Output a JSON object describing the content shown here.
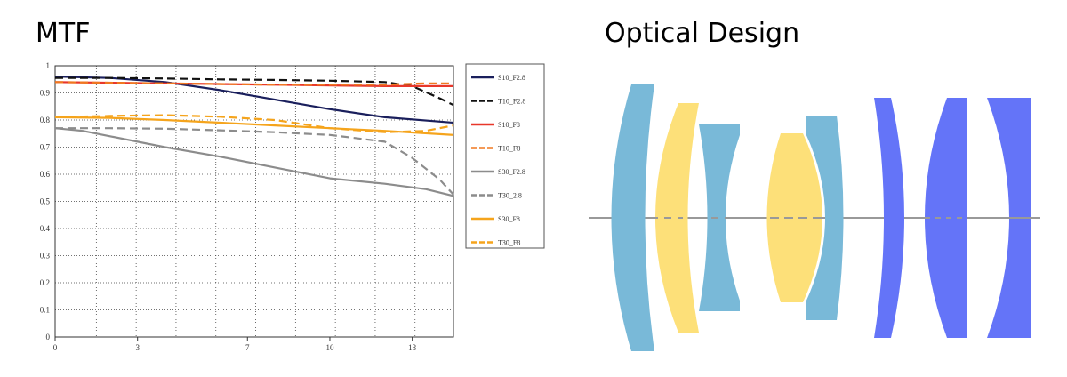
{
  "mtf_title": "MTF",
  "optical_title": "Optical Design",
  "chart_data": {
    "type": "line",
    "title": "MTF",
    "xlim": [
      0,
      14.5
    ],
    "ylim": [
      0,
      1
    ],
    "x_ticks": [
      "0",
      "3",
      "7",
      "10",
      "13"
    ],
    "x_tick_values": [
      0,
      3,
      7,
      10,
      13
    ],
    "y_ticks": [
      "0",
      "0.1",
      "0.2",
      "0.3",
      "0.4",
      "0.5",
      "0.6",
      "0.7",
      "0.8",
      "0.9",
      "1"
    ],
    "grid": true,
    "legend_position": "right",
    "series": [
      {
        "name": "S10_F2.8",
        "color": "#1a1f5c",
        "dash": false,
        "x": [
          0,
          2,
          4,
          6,
          8,
          10,
          12,
          14.5
        ],
        "y": [
          0.96,
          0.955,
          0.94,
          0.91,
          0.875,
          0.84,
          0.81,
          0.79
        ]
      },
      {
        "name": "T10_F2.8",
        "color": "#111111",
        "dash": true,
        "x": [
          0,
          2,
          4,
          6,
          8,
          10,
          12,
          13,
          14,
          14.5
        ],
        "y": [
          0.955,
          0.955,
          0.953,
          0.95,
          0.948,
          0.945,
          0.94,
          0.925,
          0.88,
          0.855
        ]
      },
      {
        "name": "S10_F8",
        "color": "#e8372a",
        "dash": false,
        "x": [
          0,
          4,
          8,
          12,
          14.5
        ],
        "y": [
          0.94,
          0.935,
          0.93,
          0.925,
          0.925
        ]
      },
      {
        "name": "T10_F8",
        "color": "#f07820",
        "dash": true,
        "x": [
          0,
          4,
          8,
          12,
          13.5,
          14.5
        ],
        "y": [
          0.94,
          0.935,
          0.93,
          0.93,
          0.935,
          0.935
        ]
      },
      {
        "name": "S30_F2.8",
        "color": "#8c8c8c",
        "dash": false,
        "x": [
          0,
          1,
          2,
          4,
          6,
          8,
          10,
          12,
          13.5,
          14.5
        ],
        "y": [
          0.77,
          0.76,
          0.74,
          0.7,
          0.665,
          0.625,
          0.585,
          0.565,
          0.545,
          0.52
        ]
      },
      {
        "name": "T30_2.8",
        "color": "#8c8c8c",
        "dash": true,
        "x": [
          0,
          2,
          4,
          6,
          8,
          10,
          12,
          13,
          14,
          14.5
        ],
        "y": [
          0.77,
          0.77,
          0.768,
          0.762,
          0.755,
          0.745,
          0.72,
          0.66,
          0.58,
          0.525
        ]
      },
      {
        "name": "S30_F8",
        "color": "#f5a41c",
        "dash": false,
        "x": [
          0,
          2,
          4,
          6,
          8,
          10,
          12,
          14.5
        ],
        "y": [
          0.81,
          0.808,
          0.8,
          0.79,
          0.78,
          0.77,
          0.76,
          0.745
        ]
      },
      {
        "name": "T30_F8",
        "color": "#f5a41c",
        "dash": true,
        "x": [
          0,
          2,
          4,
          6,
          8,
          10,
          12,
          13.5,
          14.5
        ],
        "y": [
          0.81,
          0.815,
          0.818,
          0.812,
          0.8,
          0.77,
          0.755,
          0.76,
          0.78
        ]
      }
    ]
  },
  "optical_design": {
    "element_colors": {
      "blue_glass": "#79b9d8",
      "yellow_glass": "#fde079",
      "violet_glass": "#6474f8"
    },
    "axis_color": "#999999"
  }
}
